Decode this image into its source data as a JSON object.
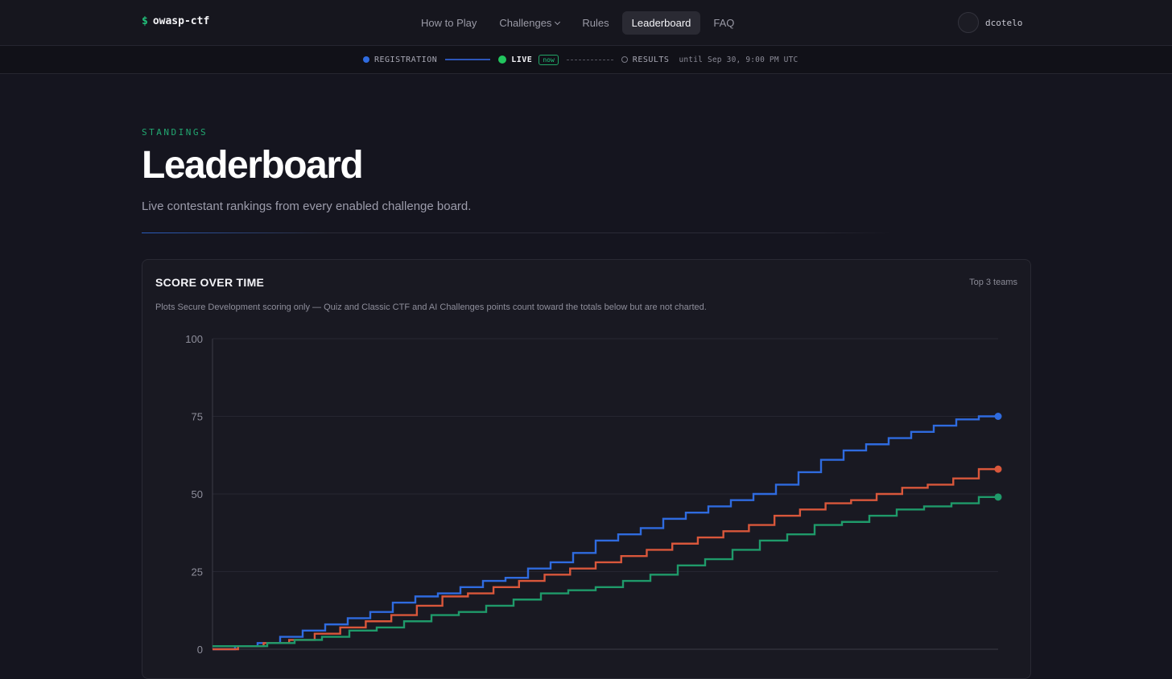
{
  "header": {
    "logo_symbol": "$",
    "logo_text": "owasp-ctf",
    "nav": [
      {
        "label": "How to Play"
      },
      {
        "label": "Challenges"
      },
      {
        "label": "Rules"
      },
      {
        "label": "Leaderboard"
      },
      {
        "label": "FAQ"
      }
    ],
    "active_nav": "Leaderboard",
    "username": "dcotelo"
  },
  "phase": {
    "registration": "REGISTRATION",
    "live": "LIVE",
    "badge": "now",
    "results": "RESULTS",
    "until": "until Sep 30, 9:00 PM UTC"
  },
  "page": {
    "eyebrow": "STANDINGS",
    "title": "Leaderboard",
    "subtitle": "Live contestant rankings from every enabled challenge board."
  },
  "card": {
    "title": "SCORE OVER TIME",
    "meta": "Top 3 teams",
    "note": "Plots Secure Development scoring only — Quiz and Classic CTF and AI Challenges points count toward the totals below but are not charted."
  },
  "colors": {
    "series_1": "#2f6bdf",
    "series_2": "#d9573b",
    "series_3": "#1f9a6a",
    "accent_green": "#22c07a"
  },
  "chart_data": {
    "type": "line",
    "step": true,
    "ylim": [
      0,
      100
    ],
    "y_ticks": [
      "0",
      "25",
      "50",
      "75",
      "100"
    ],
    "grid": true,
    "legend": "none",
    "series": [
      {
        "values": [
          0,
          1,
          2,
          4,
          6,
          8,
          10,
          12,
          15,
          17,
          18,
          20,
          22,
          23,
          26,
          28,
          31,
          35,
          37,
          39,
          42,
          44,
          46,
          48,
          50,
          53,
          57,
          61,
          64,
          66,
          68,
          70,
          72,
          74,
          75
        ]
      },
      {
        "values": [
          0,
          1,
          2,
          3,
          5,
          7,
          9,
          11,
          14,
          17,
          18,
          20,
          22,
          24,
          26,
          28,
          30,
          32,
          34,
          36,
          38,
          40,
          43,
          45,
          47,
          48,
          50,
          52,
          53,
          55,
          58
        ]
      },
      {
        "values": [
          1,
          1,
          2,
          3,
          4,
          6,
          7,
          9,
          11,
          12,
          14,
          16,
          18,
          19,
          20,
          22,
          24,
          27,
          29,
          32,
          35,
          37,
          40,
          41,
          43,
          45,
          46,
          47,
          49
        ]
      }
    ]
  }
}
